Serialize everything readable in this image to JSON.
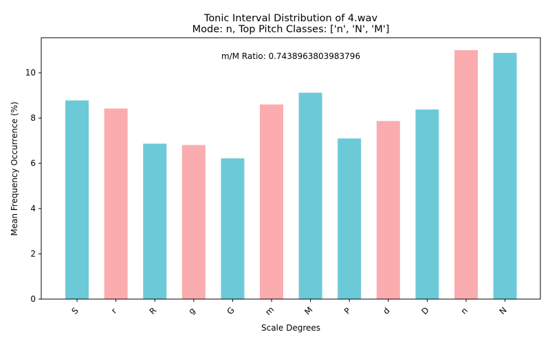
{
  "chart_data": {
    "type": "bar",
    "title": "Tonic Interval Distribution of 4.wav",
    "subtitle": "Mode: n, Top Pitch Classes: ['n', 'N', 'M']",
    "xlabel": "Scale Degrees",
    "ylabel": "Mean Frequency Occurrence (%)",
    "annotation": "m/M Ratio: 0.7438963803983796",
    "categories": [
      "S",
      "r",
      "R",
      "g",
      "G",
      "m",
      "M",
      "P",
      "d",
      "D",
      "n",
      "N"
    ],
    "values": [
      8.78,
      8.42,
      6.87,
      6.81,
      6.22,
      8.6,
      9.12,
      7.1,
      7.87,
      8.38,
      11.0,
      10.88
    ],
    "bar_colors": [
      "#6ccad8",
      "#fbacae",
      "#6ccad8",
      "#fbacae",
      "#6ccad8",
      "#fbacae",
      "#6ccad8",
      "#6ccad8",
      "#fbacae",
      "#6ccad8",
      "#fbacae",
      "#6ccad8"
    ],
    "yticks": [
      0,
      2,
      4,
      6,
      8,
      10
    ],
    "ylim": [
      0,
      11.55
    ],
    "grid": false
  }
}
